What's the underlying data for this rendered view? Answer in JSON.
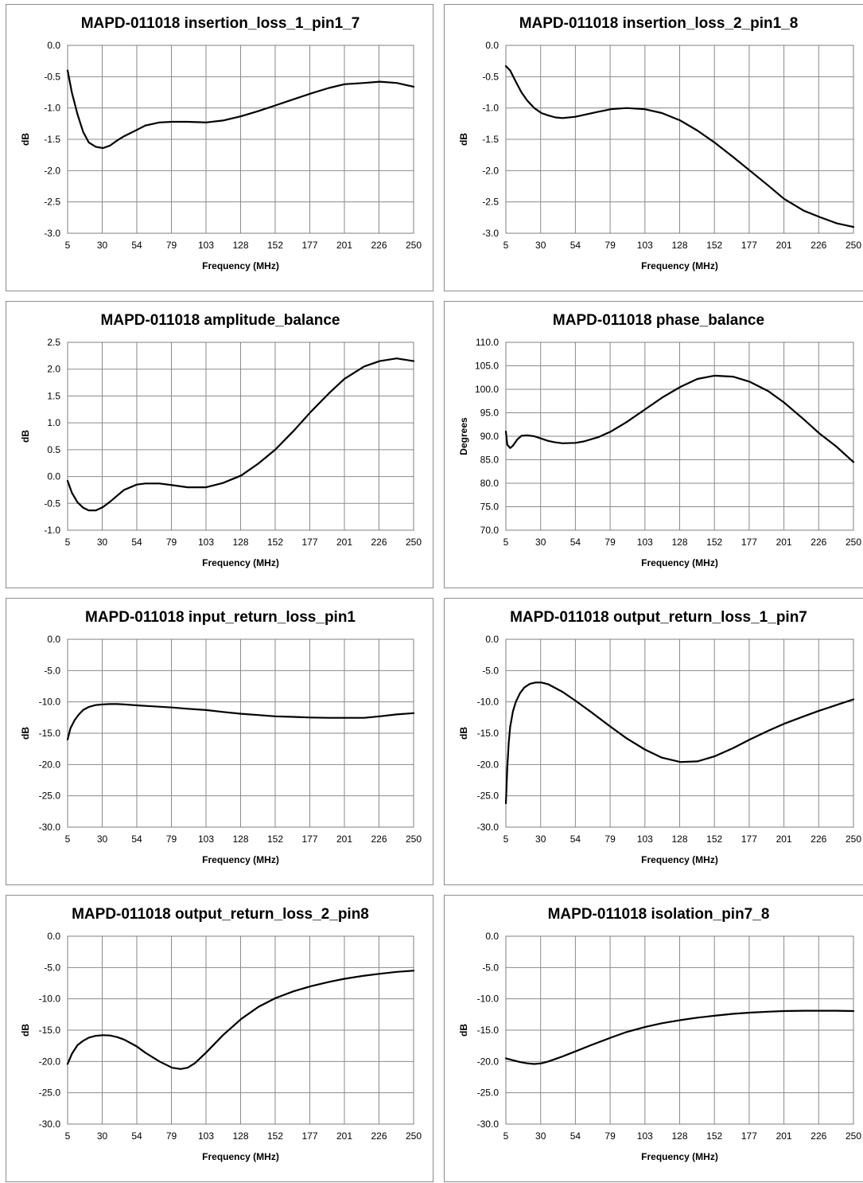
{
  "chart_data": [
    {
      "type": "line",
      "title": "MAPD-011018 insertion_loss_1_pin1_7",
      "xlabel": "Frequency (MHz)",
      "ylabel": "dB",
      "x_ticks": [
        "5",
        "30",
        "54",
        "79",
        "103",
        "128",
        "152",
        "177",
        "201",
        "226",
        "250"
      ],
      "y_ticks": [
        "0.0",
        "-0.5",
        "-1.0",
        "-1.5",
        "-2.0",
        "-2.5",
        "-3.0"
      ],
      "xlim": [
        5,
        250
      ],
      "ylim": [
        -3.0,
        0.0
      ],
      "grid": true,
      "series": [
        {
          "x": [
            5,
            8,
            12,
            16,
            20,
            25,
            30,
            35,
            40,
            45,
            54,
            60,
            70,
            79,
            90,
            103,
            115,
            128,
            140,
            152,
            165,
            177,
            190,
            201,
            215,
            226,
            238,
            250
          ],
          "y": [
            -0.4,
            -0.75,
            -1.1,
            -1.38,
            -1.55,
            -1.62,
            -1.64,
            -1.6,
            -1.52,
            -1.45,
            -1.35,
            -1.28,
            -1.23,
            -1.22,
            -1.22,
            -1.23,
            -1.2,
            -1.13,
            -1.05,
            -0.96,
            -0.86,
            -0.77,
            -0.68,
            -0.62,
            -0.6,
            -0.58,
            -0.6,
            -0.66
          ]
        }
      ]
    },
    {
      "type": "line",
      "title": "MAPD-011018 insertion_loss_2_pin1_8",
      "xlabel": "Frequency (MHz)",
      "ylabel": "dB",
      "x_ticks": [
        "5",
        "30",
        "54",
        "79",
        "103",
        "128",
        "152",
        "177",
        "201",
        "226",
        "250"
      ],
      "y_ticks": [
        "0.0",
        "-0.5",
        "-1.0",
        "-1.5",
        "-2.0",
        "-2.5",
        "-3.0"
      ],
      "xlim": [
        5,
        250
      ],
      "ylim": [
        -3.0,
        0.0
      ],
      "grid": true,
      "series": [
        {
          "x": [
            5,
            8,
            12,
            16,
            20,
            25,
            30,
            35,
            40,
            45,
            54,
            60,
            70,
            79,
            90,
            103,
            115,
            128,
            140,
            152,
            165,
            177,
            190,
            201,
            215,
            226,
            238,
            250
          ],
          "y": [
            -0.33,
            -0.4,
            -0.58,
            -0.75,
            -0.88,
            -1.0,
            -1.08,
            -1.12,
            -1.15,
            -1.16,
            -1.14,
            -1.11,
            -1.06,
            -1.02,
            -1.0,
            -1.02,
            -1.08,
            -1.2,
            -1.36,
            -1.55,
            -1.78,
            -2.0,
            -2.24,
            -2.45,
            -2.64,
            -2.74,
            -2.84,
            -2.9
          ]
        }
      ]
    },
    {
      "type": "line",
      "title": "MAPD-011018 amplitude_balance",
      "xlabel": "Frequency (MHz)",
      "ylabel": "dB",
      "x_ticks": [
        "5",
        "30",
        "54",
        "79",
        "103",
        "128",
        "152",
        "177",
        "201",
        "226",
        "250"
      ],
      "y_ticks": [
        "2.5",
        "2.0",
        "1.5",
        "1.0",
        "0.5",
        "0.0",
        "-0.5",
        "-1.0"
      ],
      "xlim": [
        5,
        250
      ],
      "ylim": [
        -1.0,
        2.5
      ],
      "grid": true,
      "series": [
        {
          "x": [
            5,
            8,
            12,
            16,
            20,
            25,
            30,
            35,
            40,
            45,
            54,
            60,
            70,
            79,
            90,
            103,
            115,
            128,
            140,
            152,
            165,
            177,
            190,
            201,
            215,
            226,
            238,
            250
          ],
          "y": [
            -0.08,
            -0.3,
            -0.48,
            -0.58,
            -0.63,
            -0.63,
            -0.57,
            -0.47,
            -0.36,
            -0.25,
            -0.15,
            -0.13,
            -0.13,
            -0.16,
            -0.2,
            -0.2,
            -0.12,
            0.02,
            0.24,
            0.5,
            0.85,
            1.2,
            1.55,
            1.82,
            2.05,
            2.15,
            2.2,
            2.15
          ]
        }
      ]
    },
    {
      "type": "line",
      "title": "MAPD-011018 phase_balance",
      "xlabel": "Frequency (MHz)",
      "ylabel": "Degrees",
      "x_ticks": [
        "5",
        "30",
        "54",
        "79",
        "103",
        "128",
        "152",
        "177",
        "201",
        "226",
        "250"
      ],
      "y_ticks": [
        "110.0",
        "105.0",
        "100.0",
        "95.0",
        "90.0",
        "85.0",
        "80.0",
        "75.0",
        "70.0"
      ],
      "xlim": [
        5,
        250
      ],
      "ylim": [
        70.0,
        110.0
      ],
      "grid": true,
      "series": [
        {
          "x": [
            5,
            6,
            8,
            10,
            13,
            16,
            20,
            25,
            30,
            35,
            40,
            45,
            54,
            60,
            70,
            79,
            90,
            103,
            115,
            128,
            140,
            152,
            165,
            177,
            190,
            201,
            215,
            226,
            238,
            250
          ],
          "y": [
            91.0,
            88.2,
            87.5,
            88.0,
            89.3,
            90.1,
            90.2,
            90.0,
            89.5,
            89.0,
            88.7,
            88.5,
            88.6,
            88.9,
            89.8,
            91.0,
            93.0,
            95.7,
            98.2,
            100.5,
            102.2,
            102.9,
            102.7,
            101.6,
            99.6,
            97.2,
            93.6,
            90.6,
            87.8,
            84.5
          ]
        }
      ]
    },
    {
      "type": "line",
      "title": "MAPD-011018 input_return_loss_pin1",
      "xlabel": "Frequency (MHz)",
      "ylabel": "dB",
      "x_ticks": [
        "5",
        "30",
        "54",
        "79",
        "103",
        "128",
        "152",
        "177",
        "201",
        "226",
        "250"
      ],
      "y_ticks": [
        "0.0",
        "-5.0",
        "-10.0",
        "-15.0",
        "-20.0",
        "-25.0",
        "-30.0"
      ],
      "xlim": [
        5,
        250
      ],
      "ylim": [
        -30.0,
        0.0
      ],
      "grid": true,
      "series": [
        {
          "x": [
            5,
            7,
            10,
            13,
            16,
            20,
            25,
            30,
            35,
            40,
            45,
            54,
            65,
            79,
            90,
            103,
            115,
            128,
            140,
            152,
            165,
            177,
            190,
            201,
            215,
            226,
            238,
            250
          ],
          "y": [
            -16.0,
            -14.2,
            -12.9,
            -12.0,
            -11.3,
            -10.8,
            -10.5,
            -10.4,
            -10.35,
            -10.35,
            -10.4,
            -10.55,
            -10.7,
            -10.9,
            -11.1,
            -11.3,
            -11.6,
            -11.9,
            -12.1,
            -12.3,
            -12.4,
            -12.5,
            -12.55,
            -12.55,
            -12.55,
            -12.3,
            -12.0,
            -11.8
          ]
        }
      ]
    },
    {
      "type": "line",
      "title": "MAPD-011018 output_return_loss_1_pin7",
      "xlabel": "Frequency (MHz)",
      "ylabel": "dB",
      "x_ticks": [
        "5",
        "30",
        "54",
        "79",
        "103",
        "128",
        "152",
        "177",
        "201",
        "226",
        "250"
      ],
      "y_ticks": [
        "0.0",
        "-5.0",
        "-10.0",
        "-15.0",
        "-20.0",
        "-25.0",
        "-30.0"
      ],
      "xlim": [
        5,
        250
      ],
      "ylim": [
        -30.0,
        0.0
      ],
      "grid": true,
      "series": [
        {
          "x": [
            5,
            6,
            7,
            8,
            10,
            12,
            15,
            18,
            22,
            26,
            30,
            35,
            40,
            45,
            54,
            65,
            79,
            90,
            103,
            115,
            128,
            140,
            152,
            165,
            177,
            190,
            201,
            215,
            226,
            238,
            250
          ],
          "y": [
            -26.2,
            -20.5,
            -16.5,
            -14.0,
            -11.5,
            -10.0,
            -8.6,
            -7.7,
            -7.1,
            -6.9,
            -6.9,
            -7.2,
            -7.8,
            -8.4,
            -9.8,
            -11.6,
            -14.0,
            -15.8,
            -17.6,
            -18.9,
            -19.6,
            -19.5,
            -18.7,
            -17.4,
            -16.0,
            -14.6,
            -13.5,
            -12.3,
            -11.4,
            -10.5,
            -9.6
          ]
        }
      ]
    },
    {
      "type": "line",
      "title": "MAPD-011018 output_return_loss_2_pin8",
      "xlabel": "Frequency (MHz)",
      "ylabel": "dB",
      "x_ticks": [
        "5",
        "30",
        "54",
        "79",
        "103",
        "128",
        "152",
        "177",
        "201",
        "226",
        "250"
      ],
      "y_ticks": [
        "0.0",
        "-5.0",
        "-10.0",
        "-15.0",
        "-20.0",
        "-25.0",
        "-30.0"
      ],
      "xlim": [
        5,
        250
      ],
      "ylim": [
        -30.0,
        0.0
      ],
      "grid": true,
      "series": [
        {
          "x": [
            5,
            8,
            12,
            16,
            20,
            25,
            30,
            35,
            40,
            45,
            54,
            60,
            70,
            79,
            85,
            90,
            95,
            103,
            115,
            128,
            140,
            152,
            165,
            177,
            190,
            201,
            215,
            226,
            238,
            250
          ],
          "y": [
            -20.4,
            -18.8,
            -17.4,
            -16.7,
            -16.2,
            -15.9,
            -15.8,
            -15.85,
            -16.1,
            -16.5,
            -17.6,
            -18.6,
            -20.0,
            -21.0,
            -21.2,
            -21.0,
            -20.3,
            -18.6,
            -15.8,
            -13.2,
            -11.3,
            -9.9,
            -8.8,
            -8.0,
            -7.3,
            -6.8,
            -6.3,
            -6.0,
            -5.7,
            -5.5
          ]
        }
      ]
    },
    {
      "type": "line",
      "title": "MAPD-011018 isolation_pin7_8",
      "xlabel": "Frequency (MHz)",
      "ylabel": "dB",
      "x_ticks": [
        "5",
        "30",
        "54",
        "79",
        "103",
        "128",
        "152",
        "177",
        "201",
        "226",
        "250"
      ],
      "y_ticks": [
        "0.0",
        "-5.0",
        "-10.0",
        "-15.0",
        "-20.0",
        "-25.0",
        "-30.0"
      ],
      "xlim": [
        5,
        250
      ],
      "ylim": [
        -30.0,
        0.0
      ],
      "grid": true,
      "series": [
        {
          "x": [
            5,
            10,
            15,
            20,
            25,
            30,
            35,
            40,
            45,
            54,
            65,
            79,
            90,
            103,
            115,
            128,
            140,
            152,
            165,
            177,
            190,
            201,
            215,
            226,
            238,
            250
          ],
          "y": [
            -19.5,
            -19.8,
            -20.1,
            -20.3,
            -20.4,
            -20.3,
            -20.0,
            -19.6,
            -19.2,
            -18.4,
            -17.4,
            -16.2,
            -15.3,
            -14.5,
            -13.9,
            -13.4,
            -13.0,
            -12.7,
            -12.4,
            -12.2,
            -12.05,
            -11.95,
            -11.9,
            -11.9,
            -11.9,
            -11.95
          ]
        }
      ]
    }
  ]
}
